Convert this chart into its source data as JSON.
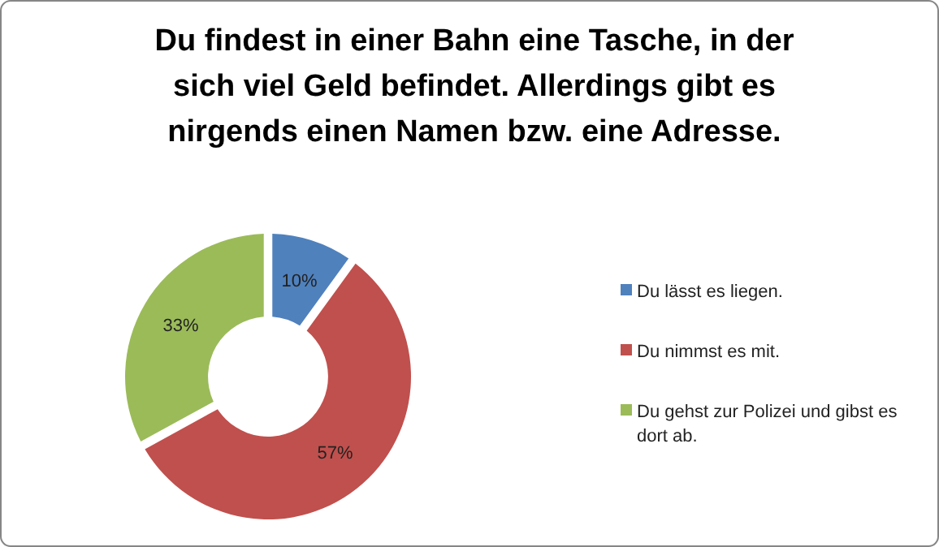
{
  "chart_data": {
    "type": "donut",
    "title": "Du findest in einer Bahn eine Tasche, in der sich viel Geld befindet. Allerdings gibt es nirgends einen Namen bzw. eine Adresse.",
    "categories": [
      "Du lässt es liegen.",
      "Du nimmst es mit.",
      "Du gehst zur Polizei und gibst es dort ab."
    ],
    "values": [
      10,
      57,
      33
    ],
    "colors": [
      "#4f81bd",
      "#c0504d",
      "#9bbb59"
    ],
    "value_labels": [
      "10%",
      "57%",
      "33%"
    ],
    "legend": "right"
  }
}
